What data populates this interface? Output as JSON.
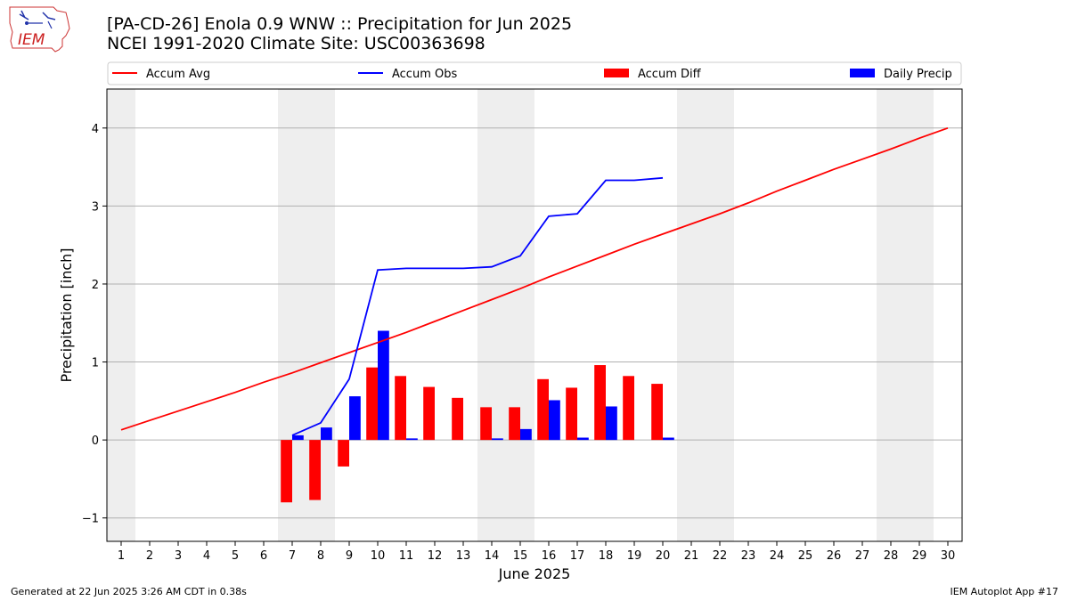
{
  "header": {
    "title_line1": "[PA-CD-26] Enola 0.9 WNW :: Precipitation for Jun 2025",
    "title_line2": "NCEI 1991-2020 Climate Site: USC00363698",
    "logo_text": "IEM"
  },
  "footer": {
    "generated": "Generated at 22 Jun 2025 3:26 AM CDT in 0.38s",
    "app": "IEM Autoplot App #17"
  },
  "colors": {
    "avg": "#ff0000",
    "obs": "#0000ff",
    "diff": "#ff0000",
    "daily": "#0000ff",
    "weekend_shade": "#eeeeee",
    "grid": "#b0b0b0"
  },
  "chart_data": {
    "type": "bar",
    "xlabel": "June 2025",
    "ylabel": "Precipitation [inch]",
    "xlim": [
      0.5,
      30.5
    ],
    "ylim": [
      -1.3,
      4.5
    ],
    "x_ticks": [
      1,
      2,
      3,
      4,
      5,
      6,
      7,
      8,
      9,
      10,
      11,
      12,
      13,
      14,
      15,
      16,
      17,
      18,
      19,
      20,
      21,
      22,
      23,
      24,
      25,
      26,
      27,
      28,
      29,
      30
    ],
    "y_ticks": [
      -1,
      0,
      1,
      2,
      3,
      4
    ],
    "y_tick_labels": [
      "−1",
      "0",
      "1",
      "2",
      "3",
      "4"
    ],
    "grid": "horizontal",
    "legend_position": "top",
    "weekend_days": [
      1,
      7,
      8,
      14,
      15,
      21,
      22,
      28,
      29
    ],
    "legend": [
      "Accum Avg",
      "Accum Obs",
      "Accum Diff",
      "Daily Precip"
    ],
    "series": [
      {
        "name": "Accum Avg",
        "kind": "line",
        "x": [
          1,
          2,
          3,
          4,
          5,
          6,
          7,
          8,
          9,
          10,
          11,
          12,
          13,
          14,
          15,
          16,
          17,
          18,
          19,
          20,
          21,
          22,
          23,
          24,
          25,
          26,
          27,
          28,
          29,
          30
        ],
        "values": [
          0.13,
          0.25,
          0.37,
          0.49,
          0.61,
          0.74,
          0.86,
          0.99,
          1.12,
          1.25,
          1.38,
          1.52,
          1.66,
          1.8,
          1.94,
          2.09,
          2.23,
          2.37,
          2.51,
          2.64,
          2.77,
          2.9,
          3.04,
          3.19,
          3.33,
          3.47,
          3.6,
          3.73,
          3.87,
          4.0
        ]
      },
      {
        "name": "Accum Obs",
        "kind": "line",
        "x": [
          7,
          8,
          9,
          10,
          11,
          12,
          13,
          14,
          15,
          16,
          17,
          18,
          19,
          20
        ],
        "values": [
          0.06,
          0.22,
          0.78,
          2.18,
          2.2,
          2.2,
          2.2,
          2.22,
          2.36,
          2.87,
          2.9,
          3.33,
          3.33,
          3.36
        ]
      },
      {
        "name": "Accum Diff",
        "kind": "bar",
        "x": [
          7,
          8,
          9,
          10,
          11,
          12,
          13,
          14,
          15,
          16,
          17,
          18,
          19,
          20
        ],
        "values": [
          -0.8,
          -0.77,
          -0.34,
          0.93,
          0.82,
          0.68,
          0.54,
          0.42,
          0.42,
          0.78,
          0.67,
          0.96,
          0.82,
          0.72
        ]
      },
      {
        "name": "Daily Precip",
        "kind": "bar",
        "x": [
          7,
          8,
          9,
          10,
          11,
          12,
          13,
          14,
          15,
          16,
          17,
          18,
          19,
          20
        ],
        "values": [
          0.06,
          0.16,
          0.56,
          1.4,
          0.02,
          0.0,
          0.0,
          0.02,
          0.14,
          0.51,
          0.03,
          0.43,
          0.0,
          0.03
        ]
      }
    ]
  }
}
